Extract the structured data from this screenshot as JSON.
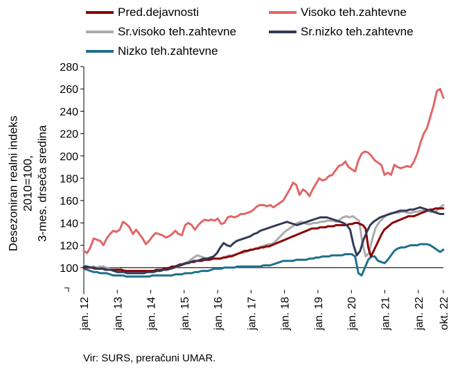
{
  "chart_data": {
    "type": "line",
    "title": "",
    "ylabel": "Desezoniran realni indeks 2010=100, 3-mes. drseča sredina",
    "ylabel_lines": [
      "Desezoniran realni indeks 2010=100,",
      "3-mes. drseča sredina"
    ],
    "xlabel": "",
    "ylim": [
      80,
      280
    ],
    "yticks": [
      100,
      120,
      140,
      160,
      180,
      200,
      220,
      240,
      260,
      280
    ],
    "reference_line": 100,
    "x_tick_labels": [
      "jan. 12",
      "jan. 13",
      "jan. 14",
      "jan. 15",
      "jan. 16",
      "jan. 17",
      "jan. 18",
      "jan. 19",
      "jan. 20",
      "jan. 21",
      "jan. 22",
      "okt. 22"
    ],
    "x_start": "2012-01",
    "x_end": "2022-10",
    "legend_position": "top",
    "source": "Vir: SURS, preračuni UMAR.",
    "series": [
      {
        "name": "Pred.dejavnosti",
        "color": "#8b0000",
        "values": [
          100,
          100,
          100,
          100,
          99,
          99,
          99,
          99,
          98,
          98,
          98,
          98,
          98,
          98,
          98,
          97,
          97,
          97,
          97,
          97,
          97,
          97,
          97,
          97,
          97,
          97,
          97,
          98,
          98,
          98,
          99,
          99,
          100,
          101,
          101,
          102,
          103,
          103,
          104,
          104,
          105,
          105,
          106,
          106,
          106,
          107,
          107,
          107,
          108,
          108,
          108,
          108,
          109,
          109,
          110,
          110,
          111,
          112,
          113,
          114,
          115,
          115,
          116,
          116,
          117,
          117,
          118,
          118,
          119,
          119,
          120,
          121,
          122,
          123,
          124,
          125,
          126,
          127,
          128,
          129,
          130,
          131,
          132,
          133,
          134,
          135,
          135,
          135,
          136,
          136,
          136,
          137,
          137,
          137,
          138,
          138,
          138,
          138,
          138,
          139,
          139,
          140,
          140,
          139,
          138,
          135,
          118,
          110,
          115,
          120,
          125,
          130,
          134,
          136,
          138,
          140,
          141,
          142,
          143,
          144,
          145,
          146,
          146,
          146,
          147,
          148,
          149,
          150,
          151,
          152,
          152,
          153,
          153,
          153,
          153
        ]
      },
      {
        "name": "Visoko teh.zahtevne",
        "color": "#e06666",
        "values": [
          115,
          113,
          118,
          126,
          125,
          124,
          120,
          126,
          130,
          133,
          132,
          134,
          141,
          139,
          136,
          130,
          134,
          130,
          126,
          121,
          124,
          128,
          131,
          130,
          129,
          127,
          128,
          130,
          133,
          130,
          129,
          138,
          140,
          138,
          134,
          138,
          141,
          143,
          142,
          143,
          142,
          144,
          139,
          140,
          145,
          146,
          145,
          146,
          148,
          148,
          149,
          150,
          152,
          155,
          156,
          156,
          155,
          156,
          154,
          156,
          158,
          160,
          165,
          170,
          176,
          174,
          165,
          170,
          168,
          164,
          170,
          175,
          180,
          178,
          179,
          182,
          183,
          187,
          191,
          192,
          195,
          190,
          188,
          186,
          196,
          202,
          204,
          203,
          200,
          196,
          194,
          192,
          183,
          185,
          183,
          192,
          190,
          189,
          190,
          191,
          190,
          195,
          202,
          212,
          220,
          225,
          235,
          245,
          258,
          260,
          252
        ]
      },
      {
        "name": "Sr.visoko teh.zahtevne",
        "color": "#aaaaaa",
        "values": [
          102,
          101,
          100,
          101,
          100,
          101,
          101,
          100,
          99,
          99,
          99,
          99,
          98,
          97,
          96,
          96,
          96,
          96,
          96,
          96,
          96,
          97,
          97,
          98,
          98,
          98,
          99,
          99,
          100,
          101,
          102,
          104,
          105,
          107,
          109,
          111,
          110,
          109,
          108,
          108,
          108,
          108,
          108,
          109,
          110,
          111,
          111,
          112,
          113,
          113,
          114,
          115,
          116,
          117,
          118,
          119,
          120,
          121,
          121,
          123,
          126,
          129,
          132,
          134,
          136,
          138,
          140,
          141,
          140,
          139,
          139,
          140,
          140,
          141,
          141,
          142,
          142,
          142,
          141,
          143,
          145,
          146,
          145,
          146,
          144,
          142,
          122,
          110,
          113,
          125,
          135,
          140,
          143,
          146,
          148,
          149,
          149,
          149,
          150,
          150,
          149,
          149,
          150,
          150,
          151,
          151,
          151,
          150,
          150,
          151,
          154,
          156
        ]
      },
      {
        "name": "Sr.nizko teh.zahtevne",
        "color": "#333a56",
        "values": [
          101,
          101,
          100,
          100,
          99,
          99,
          99,
          98,
          98,
          97,
          96,
          96,
          96,
          95,
          95,
          95,
          95,
          95,
          95,
          96,
          96,
          96,
          97,
          97,
          98,
          98,
          99,
          100,
          101,
          102,
          103,
          104,
          105,
          106,
          106,
          107,
          108,
          108,
          109,
          110,
          113,
          118,
          122,
          120,
          119,
          122,
          124,
          125,
          126,
          127,
          128,
          130,
          131,
          133,
          134,
          135,
          136,
          137,
          138,
          139,
          140,
          141,
          140,
          139,
          138,
          139,
          140,
          141,
          142,
          143,
          144,
          145,
          145,
          145,
          144,
          143,
          142,
          141,
          140,
          138,
          134,
          120,
          111,
          115,
          125,
          132,
          138,
          141,
          143,
          145,
          146,
          147,
          148,
          149,
          150,
          151,
          151,
          151,
          152,
          152,
          153,
          154,
          153,
          152,
          151,
          150,
          149,
          148,
          148
        ]
      },
      {
        "name": "Nizko teh.zahtevne",
        "color": "#1f6f8b",
        "values": [
          99,
          98,
          97,
          96,
          96,
          95,
          95,
          95,
          94,
          93,
          93,
          93,
          93,
          92,
          92,
          92,
          92,
          92,
          92,
          92,
          92,
          93,
          93,
          93,
          93,
          93,
          93,
          93,
          94,
          94,
          94,
          95,
          95,
          95,
          96,
          96,
          97,
          97,
          97,
          98,
          99,
          99,
          99,
          100,
          100,
          100,
          100,
          101,
          101,
          101,
          101,
          101,
          101,
          101,
          101,
          102,
          102,
          102,
          103,
          104,
          105,
          106,
          106,
          106,
          106,
          107,
          107,
          107,
          107,
          108,
          108,
          109,
          109,
          110,
          110,
          110,
          111,
          111,
          111,
          111,
          112,
          112,
          112,
          110,
          95,
          93,
          100,
          107,
          110,
          110,
          106,
          105,
          104,
          107,
          111,
          115,
          117,
          118,
          118,
          119,
          120,
          120,
          120,
          121,
          121,
          121,
          120,
          118,
          116,
          114,
          116
        ]
      }
    ]
  }
}
